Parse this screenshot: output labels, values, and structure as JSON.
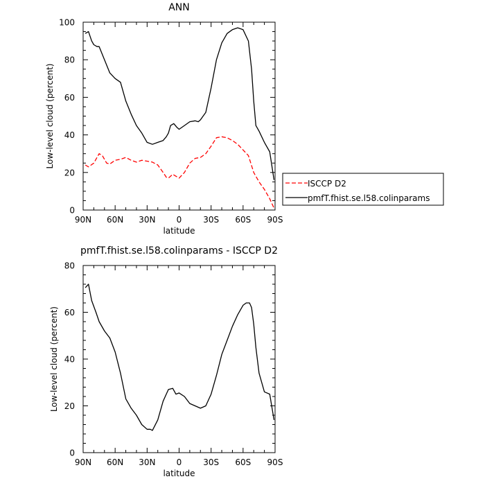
{
  "chart_data": [
    {
      "type": "line",
      "title": "ANN",
      "xlabel": "latitude",
      "ylabel": "Low-level cloud (percent)",
      "xlim": [
        -90,
        90
      ],
      "ylim": [
        0,
        100
      ],
      "xticks": [
        -90,
        -60,
        -30,
        0,
        30,
        60,
        90
      ],
      "xtick_labels": [
        "90N",
        "60N",
        "30N",
        "0",
        "30S",
        "60S",
        "90S"
      ],
      "yticks": [
        0,
        20,
        40,
        60,
        80,
        100
      ],
      "ytick_labels": [
        "0",
        "20",
        "40",
        "60",
        "80",
        "100"
      ],
      "grid": false,
      "legend": "right, outside plot",
      "series": [
        {
          "name": "ISCCP D2",
          "color": "#ff0000",
          "dash": "dashed",
          "x": [
            -88,
            -85,
            -80,
            -75,
            -72,
            -68,
            -65,
            -60,
            -55,
            -50,
            -45,
            -40,
            -35,
            -30,
            -25,
            -20,
            -15,
            -12,
            -10,
            -6,
            -3,
            0,
            5,
            10,
            15,
            20,
            25,
            30,
            35,
            40,
            45,
            50,
            55,
            60,
            65,
            70,
            75,
            80,
            85,
            89
          ],
          "values": [
            24,
            23,
            25,
            30,
            29,
            25,
            24.5,
            26.5,
            27,
            28,
            26.5,
            25.5,
            26.5,
            26,
            25.5,
            24,
            20,
            17.5,
            17,
            19,
            18,
            17,
            20,
            25,
            27.5,
            28,
            30,
            34,
            38.5,
            39,
            38.5,
            37,
            35,
            32,
            29,
            20,
            15,
            11,
            6,
            1
          ]
        },
        {
          "name": "pmfT.fhist.se.l58.colinparams",
          "color": "#000000",
          "dash": "solid",
          "x": [
            -88,
            -85,
            -82,
            -80,
            -77,
            -75,
            -70,
            -65,
            -60,
            -55,
            -50,
            -45,
            -40,
            -35,
            -30,
            -25,
            -20,
            -15,
            -12,
            -10,
            -8,
            -5,
            -2,
            0,
            5,
            10,
            15,
            18,
            20,
            25,
            30,
            35,
            40,
            45,
            50,
            55,
            60,
            65,
            68,
            70,
            72,
            75,
            80,
            85,
            89
          ],
          "values": [
            94,
            95,
            90,
            88,
            87,
            87,
            80,
            73,
            70,
            68,
            58,
            51,
            45,
            41,
            36,
            35,
            36,
            37,
            39,
            41,
            45,
            46,
            44,
            43,
            45,
            47,
            47.5,
            47,
            48,
            52,
            65,
            80,
            89,
            94,
            96,
            97,
            96,
            90,
            75,
            58,
            45,
            42,
            36,
            31,
            16
          ]
        }
      ]
    },
    {
      "type": "line",
      "title": "pmfT.fhist.se.l58.colinparams - ISCCP D2",
      "xlabel": "latitude",
      "ylabel": "Low-level cloud (percent)",
      "xlim": [
        -90,
        90
      ],
      "ylim": [
        0,
        80
      ],
      "xticks": [
        -90,
        -60,
        -30,
        0,
        30,
        60,
        90
      ],
      "xtick_labels": [
        "90N",
        "60N",
        "30N",
        "0",
        "30S",
        "60S",
        "90S"
      ],
      "yticks": [
        0,
        20,
        40,
        60,
        80
      ],
      "ytick_labels": [
        "0",
        "20",
        "40",
        "60",
        "80"
      ],
      "grid": false,
      "series": [
        {
          "color": "#000000",
          "dash": "solid",
          "x": [
            -88,
            -85,
            -82,
            -78,
            -75,
            -70,
            -65,
            -60,
            -55,
            -50,
            -45,
            -40,
            -35,
            -30,
            -27,
            -25,
            -20,
            -15,
            -12,
            -10,
            -6,
            -3,
            0,
            5,
            10,
            15,
            20,
            25,
            30,
            35,
            40,
            45,
            50,
            55,
            60,
            63,
            66,
            68,
            70,
            72,
            75,
            80,
            85,
            89
          ],
          "values": [
            70.5,
            72,
            65,
            60,
            56,
            52,
            49,
            43,
            34,
            23,
            19,
            16,
            12,
            10,
            10,
            9.5,
            14,
            22,
            25,
            27,
            27.5,
            25,
            25.5,
            24,
            21,
            20,
            19,
            20,
            25,
            33,
            42,
            48,
            54,
            59,
            63,
            64,
            64,
            62,
            55,
            45,
            34,
            26,
            25,
            14
          ]
        }
      ]
    }
  ]
}
